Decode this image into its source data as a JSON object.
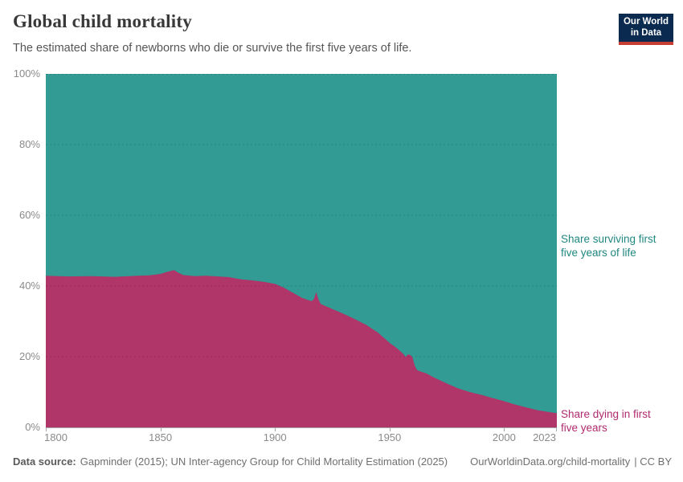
{
  "header": {
    "title": "Global child mortality",
    "subtitle": "The estimated share of newborns who die or survive the first five years of life.",
    "logo": {
      "line1": "Our World",
      "line2": "in Data"
    }
  },
  "annotations": {
    "surviving_line1": "Share surviving first",
    "surviving_line2": "five years of life",
    "dying_line1": "Share dying in first",
    "dying_line2": "five years"
  },
  "footer": {
    "datasource_label": "Data source:",
    "datasource_value": "Gapminder (2015); UN Inter-agency Group for Child Mortality Estimation (2025)",
    "link": "OurWorldinData.org/child-mortality",
    "license_suffix": "| CC BY"
  },
  "chart_data": {
    "type": "area",
    "stacked": true,
    "title": "Global child mortality",
    "subtitle": "The estimated share of newborns who die or survive the first five years of life.",
    "x_range": [
      1800,
      2023
    ],
    "y_range": [
      0,
      100
    ],
    "y_unit": "%",
    "grid": "horizontal dashed lines at 20/40/60/80/100%",
    "legend_position": "inline labels at right edge of plot",
    "x_tick_labels": [
      "1800",
      "1850",
      "1900",
      "1950",
      "2000",
      "2023"
    ],
    "y_tick_labels": [
      "100%",
      "80%",
      "60%",
      "40%",
      "20%",
      "0%"
    ],
    "x": [
      1800,
      1810,
      1820,
      1830,
      1840,
      1845,
      1850,
      1853,
      1856,
      1858,
      1860,
      1865,
      1870,
      1875,
      1880,
      1885,
      1890,
      1895,
      1900,
      1904,
      1908,
      1912,
      1915,
      1916,
      1917,
      1918,
      1919,
      1920,
      1925,
      1930,
      1935,
      1940,
      1945,
      1950,
      1953,
      1956,
      1957,
      1958,
      1959,
      1960,
      1961,
      1962,
      1964,
      1966,
      1970,
      1975,
      1980,
      1985,
      1990,
      1995,
      2000,
      2005,
      2010,
      2015,
      2020,
      2023
    ],
    "series": [
      {
        "name": "Share dying in first five years",
        "color": "#B03568",
        "values": [
          42.9,
          42.7,
          42.8,
          42.6,
          42.9,
          43.0,
          43.4,
          44.0,
          44.5,
          43.7,
          43.1,
          42.8,
          42.9,
          42.7,
          42.5,
          41.9,
          41.6,
          41.2,
          40.6,
          39.5,
          38.0,
          36.6,
          35.9,
          35.7,
          36.3,
          38.3,
          36.2,
          34.9,
          33.5,
          32.1,
          30.6,
          28.9,
          26.8,
          23.9,
          22.5,
          20.8,
          19.9,
          20.6,
          20.5,
          19.8,
          17.4,
          16.2,
          15.7,
          15.3,
          13.9,
          12.4,
          11.0,
          10.0,
          9.2,
          8.3,
          7.4,
          6.4,
          5.6,
          4.8,
          4.3,
          4.0
        ]
      },
      {
        "name": "Share surviving first five years of life",
        "color": "#319B94",
        "values": [
          57.1,
          57.3,
          57.2,
          57.4,
          57.1,
          57.0,
          56.6,
          56.0,
          55.5,
          56.3,
          56.9,
          57.2,
          57.1,
          57.3,
          57.5,
          58.1,
          58.4,
          58.8,
          59.4,
          60.5,
          62.0,
          63.4,
          64.1,
          64.3,
          63.7,
          61.7,
          63.8,
          65.1,
          66.5,
          67.9,
          69.4,
          71.1,
          73.2,
          76.1,
          77.5,
          79.2,
          80.1,
          79.4,
          79.5,
          80.2,
          82.6,
          83.8,
          84.3,
          84.7,
          86.1,
          87.6,
          89.0,
          90.0,
          90.8,
          91.7,
          92.6,
          93.6,
          94.4,
          95.2,
          95.7,
          96.0
        ]
      }
    ]
  }
}
